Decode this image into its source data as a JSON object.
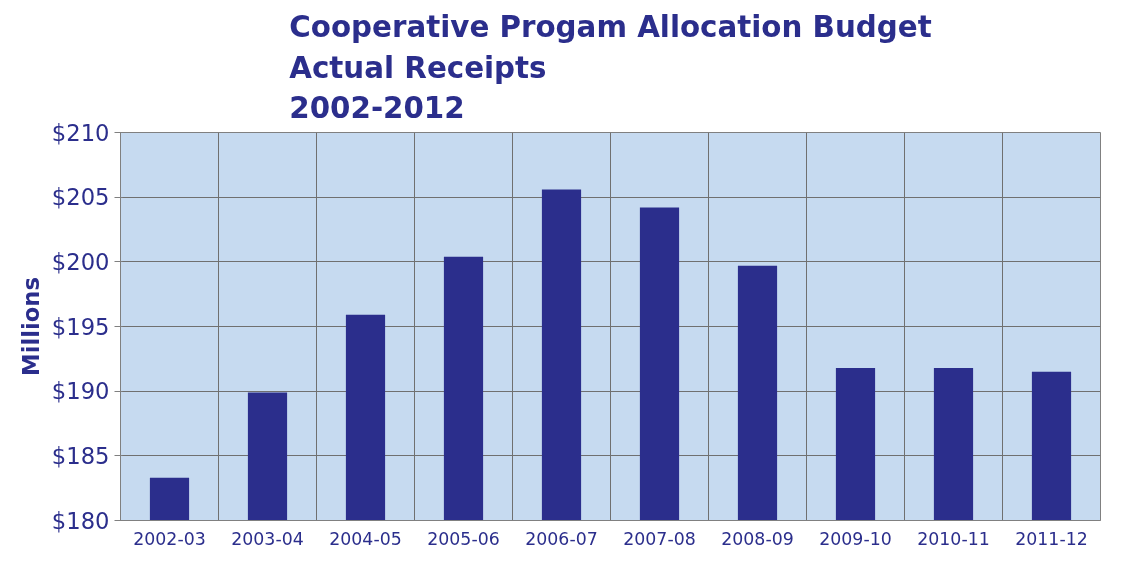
{
  "chart_data": {
    "type": "bar",
    "title": "Cooperative Progam Allocation Budget\nActual Receipts\n2002-2012",
    "ylabel": "Millions",
    "categories": [
      "2002-03",
      "2003-04",
      "2004-05",
      "2005-06",
      "2006-07",
      "2007-08",
      "2008-09",
      "2009-10",
      "2010-11",
      "2011-12"
    ],
    "values": [
      183.3,
      189.9,
      195.9,
      200.4,
      205.6,
      204.2,
      199.7,
      191.8,
      191.8,
      191.5
    ],
    "color": "#2b2e8c",
    "ylim": [
      180,
      210
    ],
    "yticks": [
      {
        "value": 180,
        "label": "$180"
      },
      {
        "value": 185,
        "label": "$185"
      },
      {
        "value": 190,
        "label": "$190"
      },
      {
        "value": 195,
        "label": "$195"
      },
      {
        "value": 200,
        "label": "$200"
      },
      {
        "value": 205,
        "label": "$205"
      },
      {
        "value": 210,
        "label": "$210"
      }
    ],
    "grid": true
  }
}
